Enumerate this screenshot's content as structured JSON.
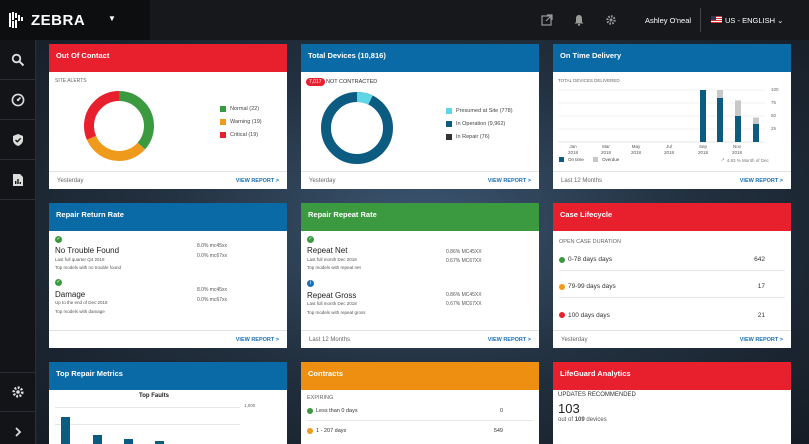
{
  "header": {
    "logo_text": "ZEBRA",
    "user_name": "Ashley O'neal",
    "language": "US - ENGLISH"
  },
  "cards": {
    "out_of_contact": {
      "title": "Out Of Contact",
      "section_label": "SITE ALERTS",
      "legend": [
        {
          "label": "Normal (22)",
          "color": "#3b9a3f",
          "value": 22
        },
        {
          "label": "Warning (19)",
          "color": "#ef9a1a",
          "value": 19
        },
        {
          "label": "Critical (19)",
          "color": "#e8202d",
          "value": 19
        }
      ],
      "footer_left": "Yesterday",
      "footer_right": "VIEW REPORT >"
    },
    "total_devices": {
      "title": "Total Devices (10,816)",
      "badge": "7,017",
      "badge_label": "NOT CONTRACTED",
      "legend": [
        {
          "label": "Presumed at Site (778)",
          "color": "#5fd6e6",
          "value": 778
        },
        {
          "label": "In Operation (9,962)",
          "color": "#0c5c82",
          "value": 9962
        },
        {
          "label": "In Repair (76)",
          "color": "#333333",
          "value": 76
        }
      ],
      "footer_left": "Yesterday",
      "footer_right": "VIEW REPORT >"
    },
    "on_time": {
      "title": "On Time Delivery",
      "section_label": "TOTAL DEVICES DELIVERED",
      "y_ticks": [
        "100",
        "75",
        "50",
        "25"
      ],
      "x_labels": [
        {
          "m": "Jan",
          "y": "2018"
        },
        {
          "m": "Mar",
          "y": "2018"
        },
        {
          "m": "May",
          "y": "2018"
        },
        {
          "m": "Jul",
          "y": "2018"
        },
        {
          "m": "Sep",
          "y": "2018"
        },
        {
          "m": "Nov",
          "y": "2018"
        }
      ],
      "legend_on_time": "On time",
      "legend_overdue": "Overdue",
      "note": "4.83 % Month of Dec",
      "footer_left": "Last 12 Months",
      "footer_right": "VIEW REPORT >"
    },
    "repair_return": {
      "title": "Repair Return Rate",
      "items": [
        {
          "title": "No Trouble Found",
          "sub1": "Last full quarter Q4 2018",
          "sub2": "Top models with no trouble found",
          "v1": "8.0% mc45xx",
          "v2": "0.0% mc67xx"
        },
        {
          "title": "Damage",
          "sub1": "Up to the end of Dec 2018",
          "sub2": "Top models with damage",
          "v1": "8.0% mc45xx",
          "v2": "0.0% mc67xx"
        }
      ],
      "footer_right": "VIEW REPORT >"
    },
    "repair_repeat": {
      "title": "Repair Repeat Rate",
      "items": [
        {
          "title": "Repeat Net",
          "sub1": "Last full month Dec 2018",
          "sub2": "Top models with repeat net",
          "v1": "0.86% MC45XX",
          "v2": "0.67% MC67XX"
        },
        {
          "title": "Repeat Gross",
          "sub1": "Last full month Dec 2018",
          "sub2": "Top models with repeat gross",
          "v1": "0.86% MC45XX",
          "v2": "0.67% MC67XX"
        }
      ],
      "footer_left": "Last 12 Months",
      "footer_right": "VIEW REPORT >"
    },
    "case_lifecycle": {
      "title": "Case Lifecycle",
      "section_label": "OPEN CASE DURATION",
      "rows": [
        {
          "label": "0-78 days days",
          "value": "642",
          "color": "#3b9a3f"
        },
        {
          "label": "79-99 days days",
          "value": "17",
          "color": "#ef9a1a"
        },
        {
          "label": "100 days days",
          "value": "21",
          "color": "#e8202d"
        }
      ],
      "footer_left": "Yesterday",
      "footer_right": "VIEW REPORT >"
    },
    "top_repair": {
      "title": "Top Repair Metrics",
      "chart_title": "Top Faults",
      "y_tick": "1,000"
    },
    "contracts": {
      "title": "Contracts",
      "section_label": "EXPIRING",
      "rows": [
        {
          "label": "Less than 0 days",
          "value": "0",
          "color": "#3b9a3f"
        },
        {
          "label": "1 - 207 days",
          "value": "549",
          "color": "#ef9a1a"
        }
      ]
    },
    "lifeguard": {
      "title": "LifeGuard Analytics",
      "section_label": "UPDATES RECOMMENDED",
      "big": "103",
      "out_of_prefix": "out of",
      "out_of_count": "109",
      "out_of_suffix": "devices"
    }
  },
  "chart_data": {
    "type": "bar",
    "categories": [
      "Sep 2018",
      "Oct 2018",
      "Nov 2018",
      "Dec 2018"
    ],
    "series": [
      {
        "name": "On time",
        "values": [
          100,
          85,
          50,
          35
        ]
      },
      {
        "name": "Overdue",
        "values": [
          0,
          15,
          30,
          12
        ]
      }
    ],
    "ylabel": "",
    "ylim": [
      0,
      100
    ],
    "colors": {
      "on_time": "#0c5c82",
      "overdue": "#c8c8c8"
    }
  }
}
